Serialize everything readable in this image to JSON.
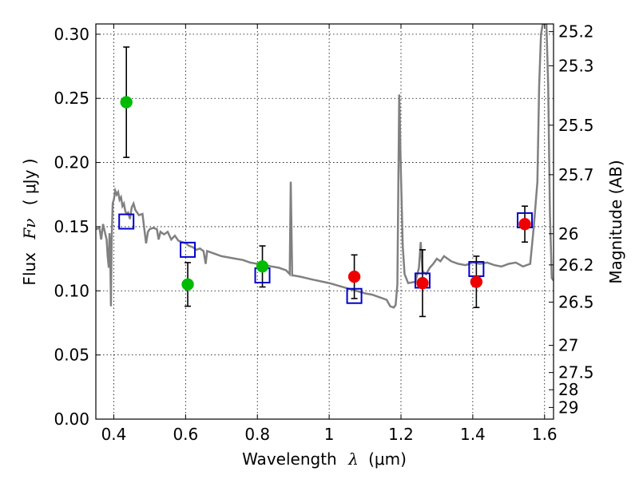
{
  "chart_data": {
    "type": "scatter",
    "xlabel": "Wavelength",
    "xlabel_symbol": "λ",
    "xlabel_unit": "(μm)",
    "ylabel": "Flux",
    "ylabel_symbol": "Fν",
    "ylabel_unit": "( μJy )",
    "y2label": "Magnitude (AB)",
    "xlim": [
      0.35,
      1.625
    ],
    "ylim": [
      0.0,
      0.308
    ],
    "grid": true,
    "grid_style": "dotted",
    "x_ticks": [
      0.4,
      0.6,
      0.8,
      1.0,
      1.2,
      1.4,
      1.6
    ],
    "x_tick_labels": [
      "0.4",
      "0.6",
      "0.8",
      "1",
      "1.2",
      "1.4",
      "1.6"
    ],
    "y_ticks": [
      0.0,
      0.05,
      0.1,
      0.15,
      0.2,
      0.25,
      0.3
    ],
    "y_tick_labels": [
      "0.00",
      "0.05",
      "0.10",
      "0.15",
      "0.20",
      "0.25",
      "0.30"
    ],
    "y2_ticks": [
      {
        "label": "25.2",
        "flux": 0.302
      },
      {
        "label": "25.3",
        "flux": 0.2754
      },
      {
        "label": "25.5",
        "flux": 0.2291
      },
      {
        "label": "25.7",
        "flux": 0.1905
      },
      {
        "label": "26",
        "flux": 0.1445
      },
      {
        "label": "26.2",
        "flux": 0.1202
      },
      {
        "label": "26.5",
        "flux": 0.0912
      },
      {
        "label": "27",
        "flux": 0.0575
      },
      {
        "label": "27.5",
        "flux": 0.0363
      },
      {
        "label": "28",
        "flux": 0.0229
      },
      {
        "label": "29",
        "flux": 0.0091
      }
    ],
    "series": [
      {
        "kind": "points",
        "marker": "circle",
        "color": "#00bb00",
        "points": [
          {
            "x": 0.435,
            "y": 0.247,
            "err": 0.043
          },
          {
            "x": 0.606,
            "y": 0.105,
            "err": 0.017
          },
          {
            "x": 0.814,
            "y": 0.119,
            "err": 0.016
          }
        ]
      },
      {
        "kind": "points",
        "marker": "circle",
        "color": "#ee0000",
        "points": [
          {
            "x": 1.07,
            "y": 0.111,
            "err": 0.017
          },
          {
            "x": 1.26,
            "y": 0.106,
            "err": 0.026
          },
          {
            "x": 1.41,
            "y": 0.107,
            "err": 0.02
          },
          {
            "x": 1.545,
            "y": 0.152,
            "err": 0.014
          }
        ]
      },
      {
        "kind": "model_points",
        "marker": "open-square",
        "color": "#0000cc",
        "points": [
          {
            "x": 0.435,
            "y": 0.154
          },
          {
            "x": 0.606,
            "y": 0.132
          },
          {
            "x": 0.814,
            "y": 0.112
          },
          {
            "x": 1.07,
            "y": 0.096
          },
          {
            "x": 1.26,
            "y": 0.108
          },
          {
            "x": 1.41,
            "y": 0.117
          },
          {
            "x": 1.545,
            "y": 0.155
          }
        ]
      },
      {
        "kind": "spectrum",
        "color": "#808080",
        "points": [
          [
            0.35,
            0.148
          ],
          [
            0.36,
            0.149
          ],
          [
            0.365,
            0.14
          ],
          [
            0.37,
            0.152
          ],
          [
            0.375,
            0.146
          ],
          [
            0.38,
            0.14
          ],
          [
            0.383,
            0.127
          ],
          [
            0.386,
            0.118
          ],
          [
            0.388,
            0.145
          ],
          [
            0.39,
            0.13
          ],
          [
            0.392,
            0.088
          ],
          [
            0.394,
            0.14
          ],
          [
            0.397,
            0.168
          ],
          [
            0.4,
            0.171
          ],
          [
            0.404,
            0.178
          ],
          [
            0.408,
            0.175
          ],
          [
            0.412,
            0.177
          ],
          [
            0.416,
            0.171
          ],
          [
            0.42,
            0.173
          ],
          [
            0.424,
            0.166
          ],
          [
            0.428,
            0.168
          ],
          [
            0.432,
            0.162
          ],
          [
            0.436,
            0.16
          ],
          [
            0.44,
            0.161
          ],
          [
            0.445,
            0.156
          ],
          [
            0.45,
            0.165
          ],
          [
            0.455,
            0.168
          ],
          [
            0.46,
            0.163
          ],
          [
            0.47,
            0.159
          ],
          [
            0.48,
            0.16
          ],
          [
            0.485,
            0.148
          ],
          [
            0.49,
            0.137
          ],
          [
            0.495,
            0.146
          ],
          [
            0.5,
            0.148
          ],
          [
            0.51,
            0.149
          ],
          [
            0.52,
            0.148
          ],
          [
            0.525,
            0.14
          ],
          [
            0.53,
            0.146
          ],
          [
            0.54,
            0.144
          ],
          [
            0.55,
            0.146
          ],
          [
            0.56,
            0.14
          ],
          [
            0.57,
            0.143
          ],
          [
            0.58,
            0.139
          ],
          [
            0.59,
            0.138
          ],
          [
            0.6,
            0.137
          ],
          [
            0.61,
            0.135
          ],
          [
            0.62,
            0.134
          ],
          [
            0.63,
            0.132
          ],
          [
            0.64,
            0.133
          ],
          [
            0.65,
            0.131
          ],
          [
            0.656,
            0.121
          ],
          [
            0.66,
            0.131
          ],
          [
            0.67,
            0.13
          ],
          [
            0.68,
            0.129
          ],
          [
            0.69,
            0.128
          ],
          [
            0.7,
            0.127
          ],
          [
            0.72,
            0.126
          ],
          [
            0.74,
            0.125
          ],
          [
            0.76,
            0.124
          ],
          [
            0.78,
            0.122
          ],
          [
            0.8,
            0.121
          ],
          [
            0.82,
            0.12
          ],
          [
            0.84,
            0.119
          ],
          [
            0.86,
            0.118
          ],
          [
            0.88,
            0.116
          ],
          [
            0.89,
            0.113
          ],
          [
            0.893,
            0.185
          ],
          [
            0.897,
            0.112
          ],
          [
            0.9,
            0.112
          ],
          [
            0.92,
            0.111
          ],
          [
            0.95,
            0.109
          ],
          [
            1.0,
            0.106
          ],
          [
            1.05,
            0.102
          ],
          [
            1.1,
            0.098
          ],
          [
            1.12,
            0.097
          ],
          [
            1.14,
            0.095
          ],
          [
            1.16,
            0.093
          ],
          [
            1.17,
            0.088
          ],
          [
            1.18,
            0.087
          ],
          [
            1.185,
            0.089
          ],
          [
            1.19,
            0.105
          ],
          [
            1.195,
            0.253
          ],
          [
            1.2,
            0.19
          ],
          [
            1.205,
            0.135
          ],
          [
            1.21,
            0.113
          ],
          [
            1.22,
            0.106
          ],
          [
            1.24,
            0.107
          ],
          [
            1.25,
            0.118
          ],
          [
            1.255,
            0.138
          ],
          [
            1.26,
            0.115
          ],
          [
            1.27,
            0.113
          ],
          [
            1.28,
            0.118
          ],
          [
            1.29,
            0.121
          ],
          [
            1.3,
            0.125
          ],
          [
            1.31,
            0.123
          ],
          [
            1.32,
            0.127
          ],
          [
            1.34,
            0.123
          ],
          [
            1.36,
            0.121
          ],
          [
            1.38,
            0.12
          ],
          [
            1.4,
            0.122
          ],
          [
            1.42,
            0.121
          ],
          [
            1.44,
            0.122
          ],
          [
            1.46,
            0.12
          ],
          [
            1.48,
            0.119
          ],
          [
            1.5,
            0.121
          ],
          [
            1.52,
            0.122
          ],
          [
            1.54,
            0.119
          ],
          [
            1.56,
            0.121
          ],
          [
            1.57,
            0.15
          ],
          [
            1.58,
            0.185
          ],
          [
            1.585,
            0.26
          ],
          [
            1.59,
            0.3
          ],
          [
            1.595,
            0.308
          ],
          [
            1.6,
            0.308
          ],
          [
            1.605,
            0.31
          ],
          [
            1.61,
            0.26
          ],
          [
            1.615,
            0.16
          ],
          [
            1.62,
            0.11
          ],
          [
            1.625,
            0.108
          ]
        ]
      }
    ]
  }
}
